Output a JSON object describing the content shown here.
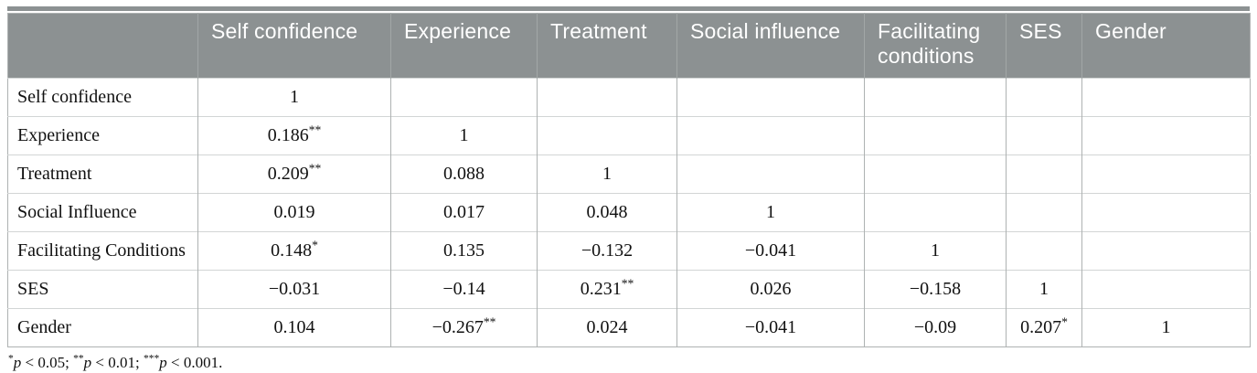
{
  "table": {
    "headers": [
      "",
      "Self confidence",
      "Experience",
      "Treatment",
      "Social influence",
      "Facilitating conditions",
      "SES",
      "Gender"
    ],
    "rows": [
      {
        "label": "Self confidence",
        "values": [
          "1",
          "",
          "",
          "",
          "",
          "",
          ""
        ]
      },
      {
        "label": "Experience",
        "values": [
          "0.186**",
          "1",
          "",
          "",
          "",
          "",
          ""
        ]
      },
      {
        "label": "Treatment",
        "values": [
          "0.209**",
          "0.088",
          "1",
          "",
          "",
          "",
          ""
        ]
      },
      {
        "label": "Social Influence",
        "values": [
          "0.019",
          "0.017",
          "0.048",
          "1",
          "",
          "",
          ""
        ]
      },
      {
        "label": "Facilitating Conditions",
        "values": [
          "0.148*",
          "0.135",
          "−0.132",
          "−0.041",
          "1",
          "",
          ""
        ]
      },
      {
        "label": "SES",
        "values": [
          "−0.031",
          "−0.14",
          "0.231**",
          "0.026",
          "−0.158",
          "1",
          ""
        ]
      },
      {
        "label": "Gender",
        "values": [
          "0.104",
          "−0.267**",
          "0.024",
          "−0.041",
          "−0.09",
          "0.207*",
          "1"
        ]
      }
    ],
    "footnote": "*p < 0.05; **p < 0.01; ***p < 0.001."
  },
  "colors": {
    "header_bg": "#8c9192",
    "header_text": "#ffffff",
    "vertical_border": "#aeb2b2",
    "horizontal_border": "#d2d5d5",
    "body_text": "#111111"
  }
}
